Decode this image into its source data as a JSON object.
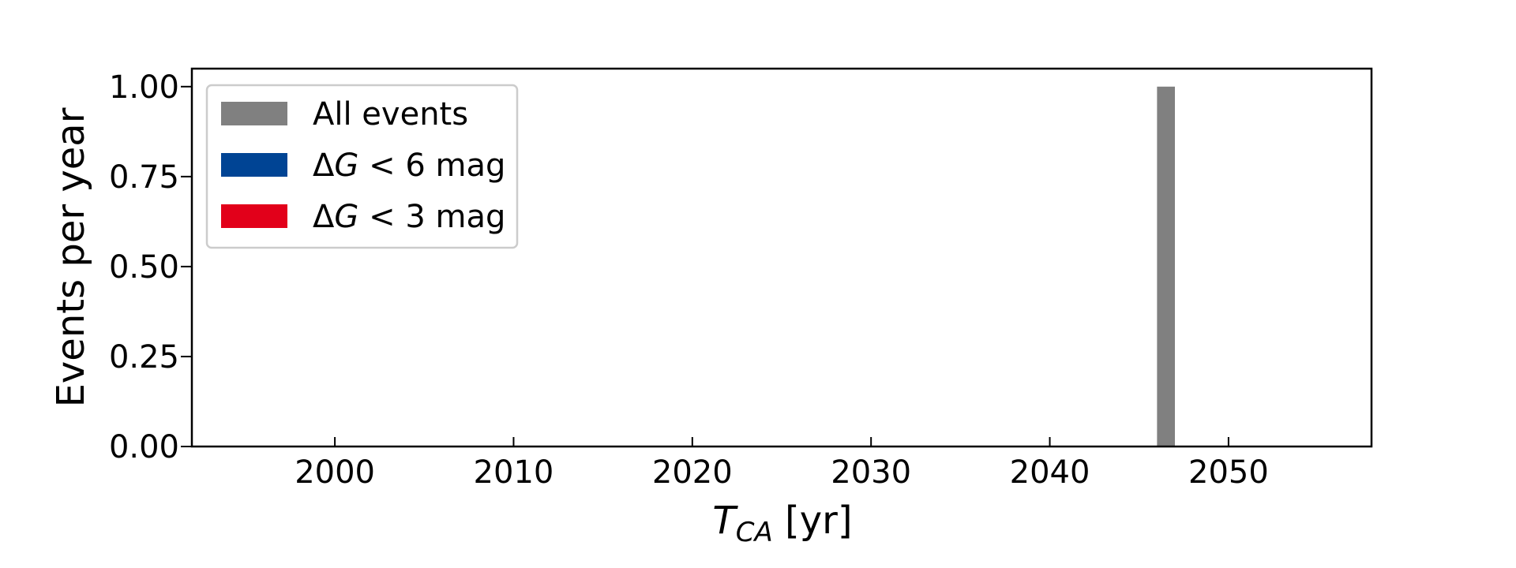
{
  "chart_data": {
    "type": "bar",
    "title": "",
    "xlabel": {
      "base": "T",
      "subscript": "CA",
      "suffix": " [yr]"
    },
    "ylabel": "Events per year",
    "xlim": [
      1992,
      2058
    ],
    "ylim": [
      0,
      1.05
    ],
    "bin_width": 1,
    "x_ticks": [
      2000,
      2010,
      2020,
      2030,
      2040,
      2050
    ],
    "y_ticks": [
      {
        "value": 0.0,
        "label": "0.00"
      },
      {
        "value": 0.25,
        "label": "0.25"
      },
      {
        "value": 0.5,
        "label": "0.50"
      },
      {
        "value": 0.75,
        "label": "0.75"
      },
      {
        "value": 1.0,
        "label": "1.00"
      }
    ],
    "grid": false,
    "legend_position": "upper-left",
    "series": [
      {
        "name": "All events",
        "color": "#808080",
        "bars": [
          {
            "x_start": 2046,
            "value": 1.0
          }
        ]
      },
      {
        "name": "ΔG < 6 mag",
        "name_parts": {
          "delta": "Δ",
          "var": "G",
          "rest": " < 6 mag"
        },
        "color": "#004494",
        "bars": []
      },
      {
        "name": "ΔG < 3 mag",
        "name_parts": {
          "delta": "Δ",
          "var": "G",
          "rest": " < 3 mag"
        },
        "color": "#E2001A",
        "bars": []
      }
    ]
  }
}
